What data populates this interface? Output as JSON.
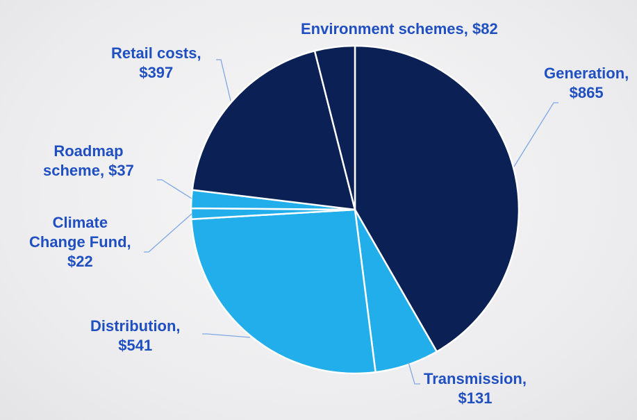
{
  "chart_data": {
    "type": "pie",
    "slices": [
      {
        "label_lines": [
          "Generation,",
          "$865"
        ],
        "value": 865,
        "color": "#0b2155"
      },
      {
        "label_lines": [
          "Transmission,",
          "$131"
        ],
        "value": 131,
        "color": "#22aeea"
      },
      {
        "label_lines": [
          "Distribution,",
          "$541"
        ],
        "value": 541,
        "color": "#22aeea"
      },
      {
        "label_lines": [
          "Climate",
          "Change Fund,",
          "$22"
        ],
        "value": 22,
        "color": "#22aeea"
      },
      {
        "label_lines": [
          "Roadmap",
          "scheme, $37"
        ],
        "value": 37,
        "color": "#22aeea"
      },
      {
        "label_lines": [
          "Retail costs,",
          "$397"
        ],
        "value": 397,
        "color": "#0b2155"
      },
      {
        "label_lines": [
          "Environment schemes, $82"
        ],
        "value": 82,
        "color": "#0b2155"
      }
    ],
    "start_angle": "12 o'clock",
    "direction": "clockwise",
    "label_color": "#1f4fc1",
    "leader_color": "#7ea7e4",
    "edge_color": "#ffffff"
  }
}
